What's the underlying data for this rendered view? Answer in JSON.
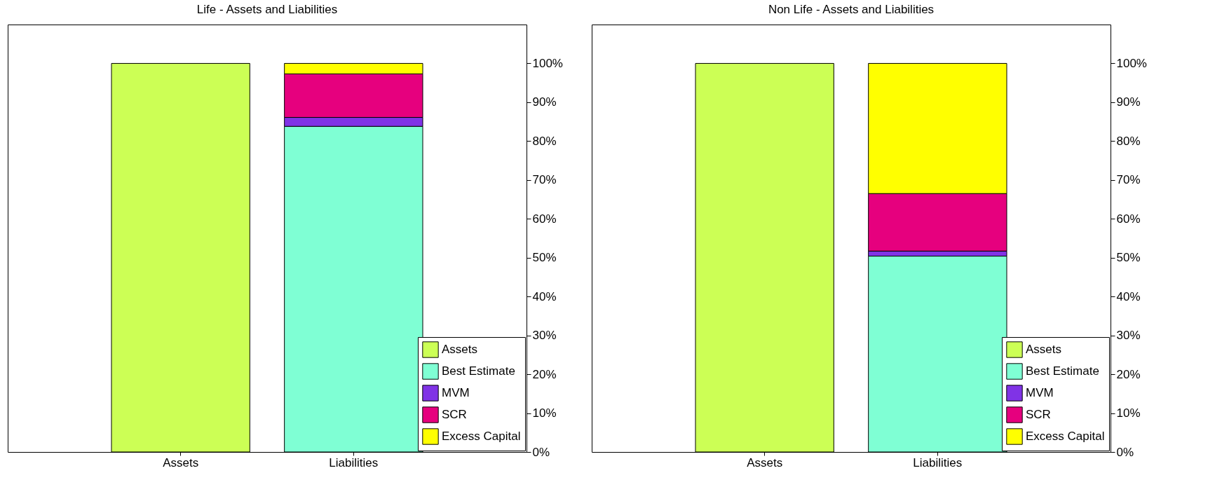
{
  "chart_data": [
    {
      "type": "bar",
      "title": "Life - Assets and Liabilities",
      "categories": [
        "Assets",
        "Liabilities"
      ],
      "stacked": true,
      "legend": "bottom right",
      "grid": false,
      "ylim": [
        0,
        110
      ],
      "yticks": [
        {
          "value": 0,
          "label": "0%"
        },
        {
          "value": 10,
          "label": "10%"
        },
        {
          "value": 20,
          "label": "20%"
        },
        {
          "value": 30,
          "label": "30%"
        },
        {
          "value": 40,
          "label": "40%"
        },
        {
          "value": 50,
          "label": "50%"
        },
        {
          "value": 60,
          "label": "60%"
        },
        {
          "value": 70,
          "label": "70%"
        },
        {
          "value": 80,
          "label": "80%"
        },
        {
          "value": 90,
          "label": "90%"
        },
        {
          "value": 100,
          "label": "100%"
        }
      ],
      "series": [
        {
          "name": "Assets",
          "color": "#ccff55",
          "values": [
            100,
            null
          ]
        },
        {
          "name": "Best Estimate",
          "color": "#7fffd4",
          "values": [
            null,
            83.8
          ]
        },
        {
          "name": "MVM",
          "color": "#8033e6",
          "values": [
            null,
            2.3
          ]
        },
        {
          "name": "SCR",
          "color": "#e6007e",
          "values": [
            null,
            11.2
          ]
        },
        {
          "name": "Excess Capital",
          "color": "#ffff00",
          "values": [
            null,
            2.7
          ]
        }
      ]
    },
    {
      "type": "bar",
      "title": "Non Life - Assets and Liabilities",
      "categories": [
        "Assets",
        "Liabilities"
      ],
      "stacked": true,
      "legend": "bottom right",
      "grid": false,
      "ylim": [
        0,
        110
      ],
      "yticks": [
        {
          "value": 0,
          "label": "0%"
        },
        {
          "value": 10,
          "label": "10%"
        },
        {
          "value": 20,
          "label": "20%"
        },
        {
          "value": 30,
          "label": "30%"
        },
        {
          "value": 40,
          "label": "40%"
        },
        {
          "value": 50,
          "label": "50%"
        },
        {
          "value": 60,
          "label": "60%"
        },
        {
          "value": 70,
          "label": "70%"
        },
        {
          "value": 80,
          "label": "80%"
        },
        {
          "value": 90,
          "label": "90%"
        },
        {
          "value": 100,
          "label": "100%"
        }
      ],
      "series": [
        {
          "name": "Assets",
          "color": "#ccff55",
          "values": [
            100,
            null
          ]
        },
        {
          "name": "Best Estimate",
          "color": "#7fffd4",
          "values": [
            null,
            50.4
          ]
        },
        {
          "name": "MVM",
          "color": "#8033e6",
          "values": [
            null,
            1.3
          ]
        },
        {
          "name": "SCR",
          "color": "#e6007e",
          "values": [
            null,
            14.8
          ]
        },
        {
          "name": "Excess Capital",
          "color": "#ffff00",
          "values": [
            null,
            33.5
          ]
        }
      ]
    }
  ]
}
